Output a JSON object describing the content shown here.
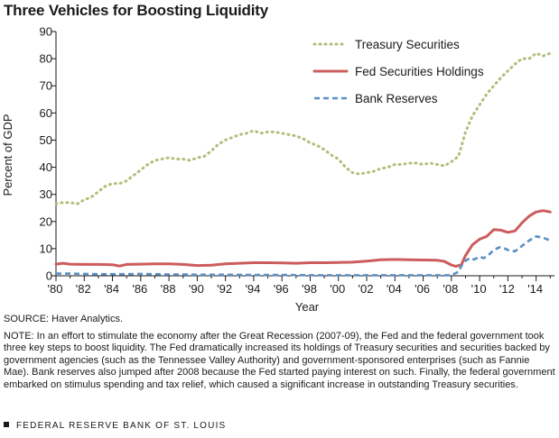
{
  "title": "Three Vehicles for Boosting Liquidity",
  "source": "SOURCE: Haver Analytics.",
  "note": "NOTE: In an effort to stimulate the economy after the Great Recession (2007-09), the Fed and the federal government took three key steps to boost liquidity. The Fed dramatically increased its holdings of Treasury securities and securities backed by government agencies (such as the Tennessee Valley Authority) and government-sponsored enterprises (such as Fannie Mae). Bank reserves also jumped after 2008 because the Fed started paying interest on such. Finally, the federal government embarked on stimulus spending and tax relief, which caused a significant increase in outstanding Treasury securities.",
  "footer": "FEDERAL RESERVE BANK OF ST. LOUIS",
  "chart_data": {
    "type": "line",
    "title": "Three Vehicles for Boosting Liquidity",
    "xlabel": "Year",
    "ylabel": "Percent of GDP",
    "xlim": [
      1980,
      2015.3
    ],
    "ylim": [
      0,
      90
    ],
    "yticks": [
      0,
      10,
      20,
      30,
      40,
      50,
      60,
      70,
      80,
      90
    ],
    "xticks": [
      1980,
      1982,
      1984,
      1986,
      1988,
      1990,
      1992,
      1994,
      1996,
      1998,
      2000,
      2002,
      2004,
      2006,
      2008,
      2010,
      2012,
      2014
    ],
    "xtick_labels": [
      "'80",
      "'82",
      "'84",
      "'86",
      "'88",
      "'90",
      "'92",
      "'94",
      "'96",
      "'98",
      "'00",
      "'02",
      "'04",
      "'06",
      "'08",
      "'10",
      "'12",
      "'14"
    ],
    "grid": false,
    "legend_position": "top-right",
    "series": [
      {
        "name": "Treasury Securities",
        "style": "dotted",
        "color": "#b5bc78",
        "x": [
          1980,
          1980.5,
          1981,
          1981.5,
          1982,
          1982.5,
          1983,
          1983.5,
          1984,
          1984.5,
          1985,
          1985.5,
          1986,
          1986.5,
          1987,
          1987.5,
          1988,
          1988.5,
          1989,
          1989.5,
          1990,
          1990.5,
          1991,
          1991.5,
          1992,
          1992.5,
          1993,
          1993.5,
          1994,
          1994.5,
          1995,
          1995.5,
          1996,
          1996.5,
          1997,
          1997.5,
          1998,
          1998.5,
          1999,
          1999.5,
          2000,
          2000.5,
          2001,
          2001.5,
          2002,
          2002.5,
          2003,
          2003.5,
          2004,
          2004.5,
          2005,
          2005.5,
          2006,
          2006.5,
          2007,
          2007.5,
          2008,
          2008.5,
          2009,
          2009.5,
          2010,
          2010.5,
          2011,
          2011.5,
          2012,
          2012.5,
          2013,
          2013.5,
          2014,
          2014.5,
          2015
        ],
        "y": [
          26.5,
          27,
          27,
          26.5,
          28,
          29,
          31,
          33,
          34,
          34,
          35,
          37,
          39,
          41,
          42.5,
          43,
          43.5,
          43,
          43,
          42.5,
          43.5,
          44,
          46,
          48.5,
          50,
          51,
          52,
          52.5,
          53.5,
          52.5,
          53,
          53,
          52.5,
          52,
          51.5,
          50.5,
          49,
          48,
          46.5,
          44.5,
          43,
          40,
          38,
          37.5,
          38,
          38.5,
          39.5,
          40,
          41,
          41,
          41.5,
          41.5,
          41,
          41.5,
          41,
          40.5,
          42,
          44,
          53,
          59,
          63,
          67,
          70,
          73,
          75.5,
          78,
          80,
          80,
          82,
          81,
          82
        ]
      },
      {
        "name": "Fed Securities Holdings",
        "style": "solid",
        "color": "#cd5c5c",
        "x": [
          1980,
          1980.5,
          1981,
          1982,
          1983,
          1984,
          1984.5,
          1985,
          1986,
          1987,
          1988,
          1989,
          1990,
          1991,
          1992,
          1993,
          1994,
          1995,
          1996,
          1997,
          1998,
          1999,
          2000,
          2001,
          2002,
          2003,
          2004,
          2005,
          2006,
          2007,
          2007.5,
          2008,
          2008.3,
          2008.7,
          2009,
          2009.5,
          2010,
          2010.5,
          2011,
          2011.5,
          2012,
          2012.5,
          2013,
          2013.5,
          2014,
          2014.5,
          2015
        ],
        "y": [
          4.3,
          4.6,
          4.3,
          4.2,
          4.2,
          4.1,
          3.6,
          4.2,
          4.3,
          4.4,
          4.4,
          4.2,
          3.8,
          3.9,
          4.4,
          4.6,
          4.8,
          4.8,
          4.7,
          4.6,
          4.8,
          4.8,
          4.9,
          5.0,
          5.4,
          5.9,
          6.0,
          5.9,
          5.8,
          5.7,
          5.3,
          4.0,
          3.5,
          4.0,
          7.5,
          11.5,
          13.5,
          14.5,
          17.0,
          16.8,
          16.0,
          16.5,
          19.5,
          22.0,
          23.5,
          24.0,
          23.5
        ]
      },
      {
        "name": "Bank Reserves",
        "style": "dashed",
        "color": "#5b90c3",
        "x": [
          1980,
          1981,
          1982,
          1983,
          1984,
          1985,
          1986,
          1987,
          1988,
          1989,
          1990,
          1992,
          1994,
          1996,
          1998,
          2000,
          2002,
          2004,
          2006,
          2007,
          2008,
          2008.5,
          2008.8,
          2009,
          2009.3,
          2009.6,
          2010,
          2010.3,
          2010.6,
          2011,
          2011.4,
          2011.8,
          2012,
          2012.5,
          2013,
          2013.5,
          2014,
          2014.5,
          2015
        ],
        "y": [
          0.8,
          0.8,
          0.7,
          0.6,
          0.6,
          0.6,
          0.7,
          0.6,
          0.5,
          0.5,
          0.4,
          0.4,
          0.3,
          0.3,
          0.2,
          0.2,
          0.2,
          0.2,
          0.2,
          0.2,
          0.2,
          1.5,
          4.5,
          5.5,
          6.5,
          6.0,
          7.0,
          6.5,
          7.5,
          9.5,
          10.5,
          10.0,
          9.5,
          9.0,
          11.0,
          13.0,
          14.5,
          14.0,
          13.0
        ]
      }
    ]
  }
}
